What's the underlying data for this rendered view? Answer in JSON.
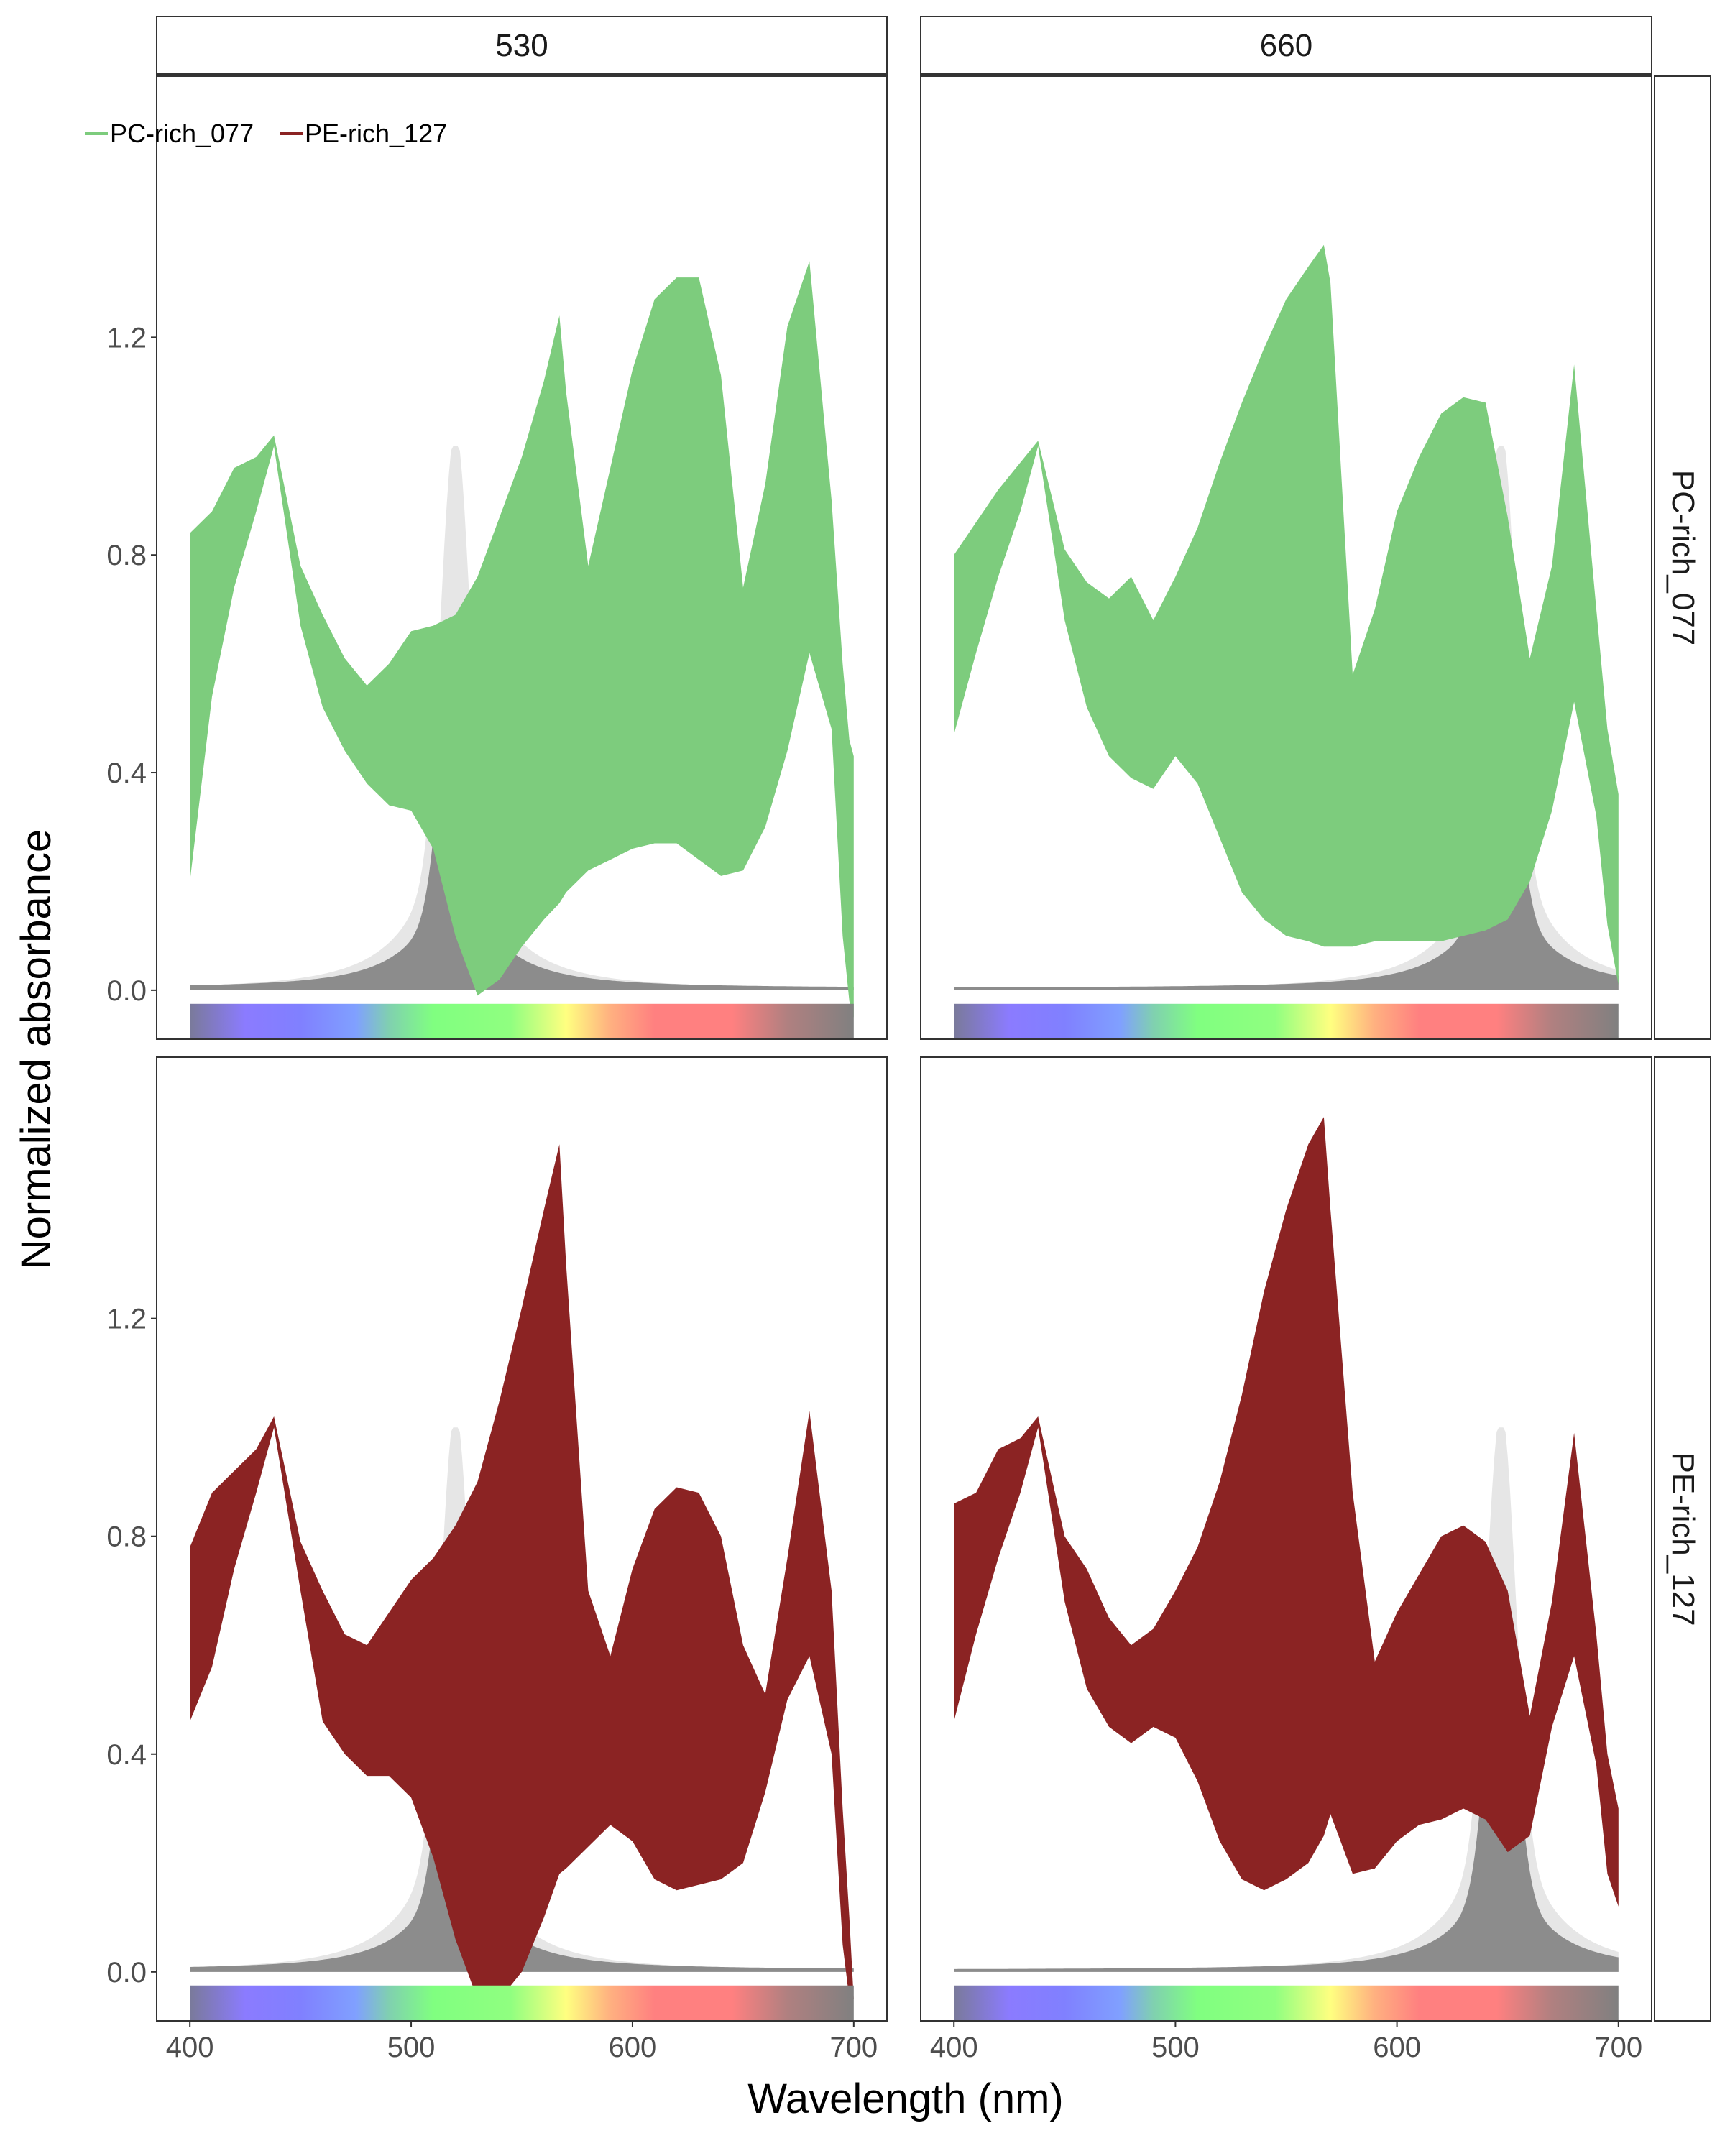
{
  "chart_data": {
    "type": "area",
    "x_label": "Wavelength (nm)",
    "y_label": "Normalized absorbance",
    "xlim": [
      385,
      715
    ],
    "ylim": [
      -0.09,
      1.68
    ],
    "x_ticks": [
      400,
      500,
      600,
      700
    ],
    "x_tick_labels": [
      "400",
      "500",
      "600",
      "700"
    ],
    "y_ticks": [
      0.0,
      0.4,
      0.8,
      1.2
    ],
    "y_tick_labels": [
      "0.0",
      "0.4",
      "0.8",
      "1.2"
    ],
    "grid": false,
    "columns": [
      "530",
      "660"
    ],
    "rows": [
      "PC-rich_077",
      "PE-rich_127"
    ],
    "legend": {
      "position": "top-left",
      "entries": [
        {
          "name": "PC-rich_077",
          "color": "#7dcc7d"
        },
        {
          "name": "PE-rich_127",
          "color": "#8b2323"
        }
      ]
    },
    "colors": {
      "PC-rich_077": "#7dcc7d",
      "PE-rich_127": "#8b2323",
      "light_spectrum": "#e6e6e6",
      "light_spectrum_core": "#8c8c8c"
    },
    "light_peaks": {
      "530": 520,
      "660": 647
    },
    "spectral_bar": {
      "x_range": [
        400,
        700
      ],
      "stops": [
        {
          "nm": 400,
          "color": "#7a7a9a"
        },
        {
          "nm": 425,
          "color": "#8b7bff"
        },
        {
          "nm": 450,
          "color": "#8080ff"
        },
        {
          "nm": 475,
          "color": "#80a0ff"
        },
        {
          "nm": 490,
          "color": "#80d0b0"
        },
        {
          "nm": 510,
          "color": "#80ff80"
        },
        {
          "nm": 545,
          "color": "#90ff80"
        },
        {
          "nm": 570,
          "color": "#ffff80"
        },
        {
          "nm": 590,
          "color": "#ffb080"
        },
        {
          "nm": 610,
          "color": "#ff8080"
        },
        {
          "nm": 645,
          "color": "#ff8080"
        },
        {
          "nm": 670,
          "color": "#b08080"
        },
        {
          "nm": 700,
          "color": "#808080"
        }
      ]
    },
    "panels": [
      {
        "column": "530",
        "row": "PC-rich_077",
        "series": "PC-rich_077",
        "x": [
          400,
          410,
          420,
          430,
          438,
          450,
          460,
          470,
          480,
          490,
          500,
          510,
          520,
          530,
          540,
          550,
          560,
          567,
          570,
          580,
          590,
          600,
          610,
          620,
          630,
          640,
          650,
          660,
          670,
          680,
          690,
          695,
          698,
          700
        ],
        "upper": [
          0.84,
          0.88,
          0.96,
          0.98,
          1.02,
          0.78,
          0.69,
          0.61,
          0.56,
          0.6,
          0.66,
          0.67,
          0.69,
          0.76,
          0.87,
          0.98,
          1.12,
          1.24,
          1.1,
          0.78,
          0.96,
          1.14,
          1.27,
          1.31,
          1.31,
          1.13,
          0.74,
          0.93,
          1.22,
          1.34,
          0.9,
          0.6,
          0.46,
          0.43
        ],
        "lower": [
          0.2,
          0.54,
          0.74,
          0.88,
          1.0,
          0.67,
          0.52,
          0.44,
          0.38,
          0.34,
          0.33,
          0.26,
          0.1,
          -0.01,
          0.02,
          0.08,
          0.13,
          0.16,
          0.18,
          0.22,
          0.24,
          0.26,
          0.27,
          0.27,
          0.24,
          0.21,
          0.22,
          0.3,
          0.44,
          0.62,
          0.48,
          0.1,
          -0.02,
          -0.05
        ]
      },
      {
        "column": "660",
        "row": "PC-rich_077",
        "series": "PC-rich_077",
        "x": [
          400,
          410,
          420,
          430,
          438,
          450,
          460,
          470,
          480,
          490,
          500,
          510,
          520,
          530,
          540,
          550,
          560,
          567,
          570,
          580,
          590,
          600,
          610,
          620,
          630,
          640,
          650,
          660,
          670,
          680,
          690,
          695,
          700
        ],
        "upper": [
          0.8,
          0.86,
          0.92,
          0.97,
          1.01,
          0.81,
          0.75,
          0.72,
          0.76,
          0.68,
          0.76,
          0.85,
          0.97,
          1.08,
          1.18,
          1.27,
          1.33,
          1.37,
          1.3,
          0.58,
          0.7,
          0.88,
          0.98,
          1.06,
          1.09,
          1.08,
          0.87,
          0.61,
          0.78,
          1.15,
          0.7,
          0.48,
          0.36
        ],
        "lower": [
          0.47,
          0.62,
          0.76,
          0.88,
          1.0,
          0.68,
          0.52,
          0.43,
          0.39,
          0.37,
          0.43,
          0.38,
          0.28,
          0.18,
          0.13,
          0.1,
          0.09,
          0.08,
          0.08,
          0.08,
          0.09,
          0.09,
          0.09,
          0.09,
          0.1,
          0.11,
          0.13,
          0.2,
          0.33,
          0.53,
          0.32,
          0.12,
          0.01
        ]
      },
      {
        "column": "530",
        "row": "PE-rich_127",
        "series": "PE-rich_127",
        "x": [
          400,
          410,
          420,
          430,
          438,
          450,
          460,
          470,
          480,
          490,
          500,
          510,
          520,
          530,
          540,
          550,
          560,
          567,
          570,
          580,
          590,
          600,
          610,
          620,
          630,
          640,
          650,
          660,
          670,
          680,
          690,
          695,
          698,
          700
        ],
        "upper": [
          0.78,
          0.88,
          0.92,
          0.96,
          1.02,
          0.79,
          0.7,
          0.62,
          0.6,
          0.66,
          0.72,
          0.76,
          0.82,
          0.9,
          1.05,
          1.22,
          1.4,
          1.52,
          1.3,
          0.7,
          0.58,
          0.74,
          0.85,
          0.89,
          0.88,
          0.8,
          0.6,
          0.51,
          0.76,
          1.03,
          0.7,
          0.3,
          0.1,
          -0.05
        ],
        "lower": [
          0.46,
          0.56,
          0.74,
          0.88,
          1.0,
          0.7,
          0.46,
          0.4,
          0.36,
          0.36,
          0.32,
          0.21,
          0.06,
          -0.05,
          -0.05,
          0.0,
          0.1,
          0.18,
          0.19,
          0.23,
          0.27,
          0.24,
          0.17,
          0.15,
          0.16,
          0.17,
          0.2,
          0.33,
          0.5,
          0.58,
          0.4,
          0.05,
          -0.05,
          -0.05
        ]
      },
      {
        "column": "660",
        "row": "PE-rich_127",
        "series": "PE-rich_127",
        "x": [
          400,
          410,
          420,
          430,
          438,
          450,
          460,
          470,
          480,
          490,
          500,
          510,
          520,
          530,
          540,
          550,
          560,
          567,
          570,
          580,
          590,
          600,
          610,
          620,
          630,
          640,
          650,
          660,
          670,
          680,
          690,
          695,
          700
        ],
        "upper": [
          0.86,
          0.88,
          0.96,
          0.98,
          1.02,
          0.8,
          0.74,
          0.65,
          0.6,
          0.63,
          0.7,
          0.78,
          0.9,
          1.06,
          1.25,
          1.4,
          1.52,
          1.57,
          1.4,
          0.88,
          0.57,
          0.66,
          0.73,
          0.8,
          0.82,
          0.79,
          0.7,
          0.47,
          0.68,
          0.99,
          0.62,
          0.4,
          0.3
        ],
        "lower": [
          0.46,
          0.62,
          0.76,
          0.88,
          1.0,
          0.68,
          0.52,
          0.45,
          0.42,
          0.45,
          0.43,
          0.35,
          0.24,
          0.17,
          0.15,
          0.17,
          0.2,
          0.25,
          0.29,
          0.18,
          0.19,
          0.24,
          0.27,
          0.28,
          0.3,
          0.28,
          0.22,
          0.25,
          0.45,
          0.58,
          0.38,
          0.18,
          0.12
        ]
      }
    ]
  }
}
